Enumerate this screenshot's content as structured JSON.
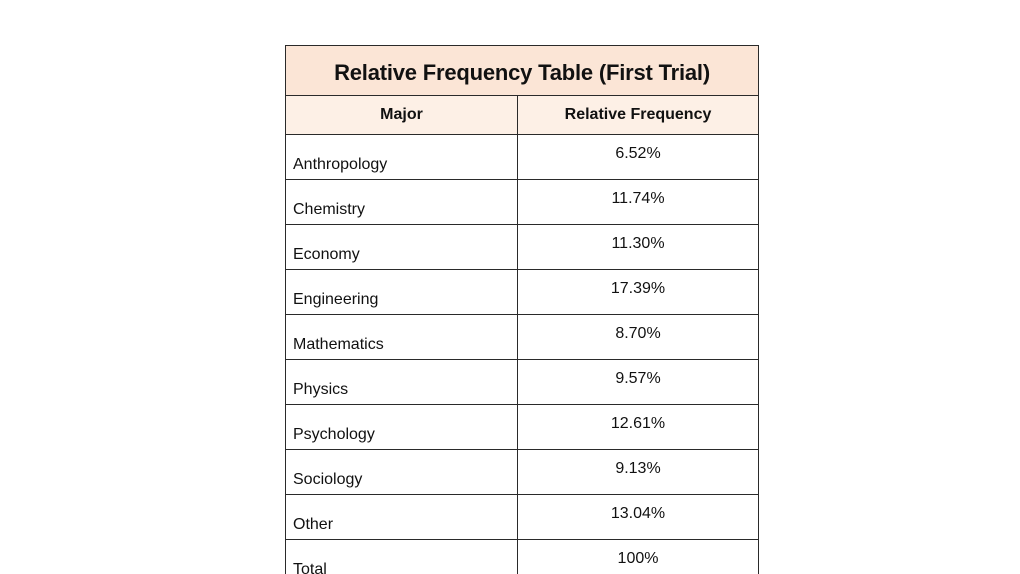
{
  "table": {
    "title": "Relative Frequency Table (First Trial)",
    "headers": [
      "Major",
      "Relative Frequency"
    ],
    "rows": [
      {
        "major": "Anthropology",
        "frequency": "6.52%"
      },
      {
        "major": "Chemistry",
        "frequency": "11.74%"
      },
      {
        "major": "Economy",
        "frequency": "11.30%"
      },
      {
        "major": "Engineering",
        "frequency": "17.39%"
      },
      {
        "major": "Mathematics",
        "frequency": "8.70%"
      },
      {
        "major": "Physics",
        "frequency": "9.57%"
      },
      {
        "major": "Psychology",
        "frequency": "12.61%"
      },
      {
        "major": "Sociology",
        "frequency": "9.13%"
      },
      {
        "major": "Other",
        "frequency": "13.04%"
      },
      {
        "major": "Total",
        "frequency": "100%"
      }
    ],
    "colors": {
      "title_bg": "#fbe5d6",
      "header_bg": "#fdf0e6",
      "border": "#2a2a2a"
    }
  }
}
